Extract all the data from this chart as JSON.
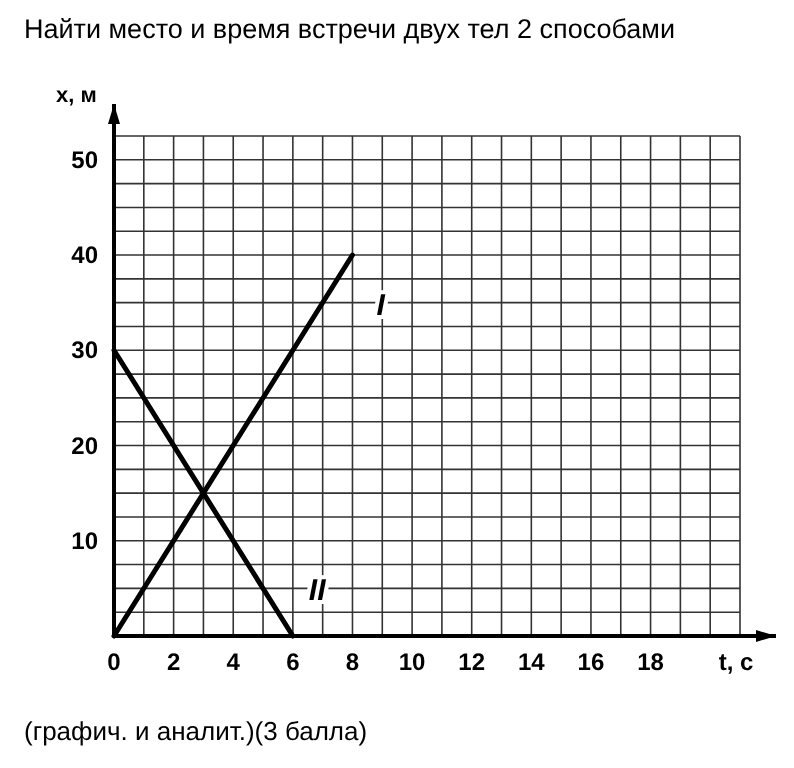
{
  "chart_data": {
    "type": "line",
    "title": "Найти место и время встречи двух тел 2 способами",
    "xlabel": "t, c",
    "ylabel": "x, м",
    "annotations": [
      "(графич. и аналит.)(3 балла)"
    ],
    "series": [
      {
        "name": "I",
        "color": "#000000",
        "x": [
          0,
          8
        ],
        "values": [
          0,
          40
        ]
      },
      {
        "name": "II",
        "color": "#000000",
        "x": [
          0,
          6
        ],
        "values": [
          30,
          0
        ]
      }
    ],
    "xlim": [
      0,
      21
    ],
    "ylim": [
      0,
      52.5
    ],
    "xticks": [
      0,
      {
        "value": 1,
        "label": null
      },
      2,
      {
        "value": 3,
        "label": null
      },
      4,
      {
        "value": 5,
        "label": null
      },
      6,
      {
        "value": 7,
        "label": null
      },
      8,
      {
        "value": 9,
        "label": null
      },
      10,
      {
        "value": 11,
        "label": null
      },
      12,
      {
        "value": 13,
        "label": null
      },
      14,
      {
        "value": 15,
        "label": null
      },
      16,
      {
        "value": 17,
        "label": null
      },
      18,
      {
        "value": 19,
        "label": null
      },
      {
        "value": 20,
        "label": null
      },
      {
        "value": 21,
        "label": null
      }
    ],
    "yticks": [
      {
        "value": 0,
        "label": null
      },
      {
        "value": 2.5,
        "label": null
      },
      {
        "value": 5,
        "label": null
      },
      {
        "value": 7.5,
        "label": null
      },
      10,
      {
        "value": 12.5,
        "label": null
      },
      {
        "value": 15,
        "label": null
      },
      {
        "value": 17.5,
        "label": null
      },
      20,
      {
        "value": 22.5,
        "label": null
      },
      {
        "value": 25,
        "label": null
      },
      {
        "value": 27.5,
        "label": null
      },
      30,
      {
        "value": 32.5,
        "label": null
      },
      {
        "value": 35,
        "label": null
      },
      {
        "value": 37.5,
        "label": null
      },
      40,
      {
        "value": 42.5,
        "label": null
      },
      {
        "value": 45,
        "label": null
      },
      {
        "value": 47.5,
        "label": null
      },
      50,
      {
        "value": 52.5,
        "label": null
      }
    ],
    "grid": true,
    "marker": "none",
    "line_style": "solid"
  }
}
